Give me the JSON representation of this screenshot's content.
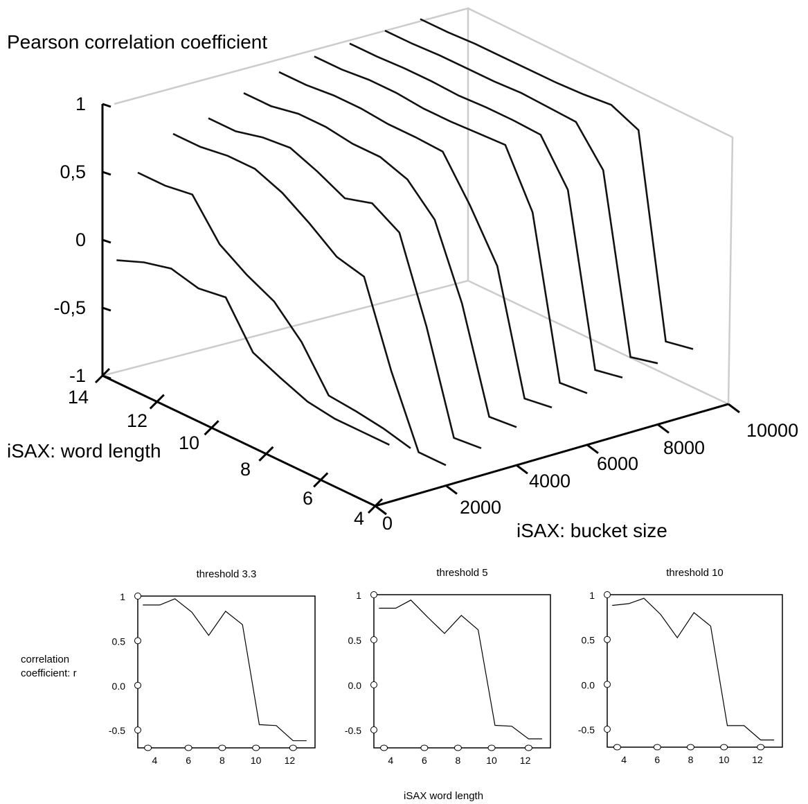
{
  "chart_data": [
    {
      "type": "line",
      "subtype": "3d-ribbon",
      "zlabel": "Pearson correlation coefficient",
      "xlabel": "iSAX: word length",
      "ylabel": "iSAX: bucket size",
      "x_ticks": [
        "14",
        "12",
        "10",
        "8",
        "6",
        "4"
      ],
      "y_ticks": [
        "0",
        "2000",
        "4000",
        "6000",
        "8000",
        "10000"
      ],
      "z_ticks": [
        "1",
        "0,5",
        "0",
        "-0,5",
        "-1"
      ],
      "xlim": [
        4,
        14
      ],
      "ylim": [
        0,
        10000
      ],
      "zlim": [
        -1,
        1
      ],
      "grid": false,
      "word_lengths": [
        4,
        5,
        6,
        7,
        8,
        9,
        10,
        11,
        12,
        13,
        14
      ],
      "series": [
        {
          "bucket_size": 400,
          "values": [
            -0.58,
            -0.58,
            -0.58,
            -0.55,
            -0.47,
            -0.38,
            -0.07,
            -0.1,
            -0.05,
            -0.1,
            -0.18
          ]
        },
        {
          "bucket_size": 1000,
          "values": [
            -0.65,
            -0.6,
            -0.57,
            -0.55,
            -0.25,
            -0.05,
            0.05,
            0.18,
            0.45,
            0.42,
            0.42
          ]
        },
        {
          "bucket_size": 2000,
          "values": [
            -0.85,
            -0.85,
            -0.35,
            0.25,
            0.3,
            0.45,
            0.58,
            0.66,
            0.66,
            0.63,
            0.63
          ]
        },
        {
          "bucket_size": 3000,
          "values": [
            -0.8,
            -0.82,
            -0.1,
            0.5,
            0.62,
            0.56,
            0.66,
            0.74,
            0.72,
            0.67,
            0.67
          ]
        },
        {
          "bucket_size": 4000,
          "values": [
            -0.72,
            -0.74,
            0.0,
            0.52,
            0.72,
            0.79,
            0.79,
            0.82,
            0.82,
            0.78,
            0.78
          ]
        },
        {
          "bucket_size": 5000,
          "values": [
            -0.65,
            -0.68,
            0.2,
            0.55,
            0.85,
            0.86,
            0.86,
            0.88,
            0.88,
            0.86,
            0.86
          ]
        },
        {
          "bucket_size": 6000,
          "values": [
            -0.62,
            -0.64,
            0.52,
            0.92,
            0.91,
            0.9,
            0.9,
            0.92,
            0.92,
            0.9,
            0.9
          ]
        },
        {
          "bucket_size": 7000,
          "values": [
            -0.58,
            -0.62,
            0.61,
            0.92,
            0.93,
            0.93,
            0.92,
            0.93,
            0.93,
            0.92,
            0.92
          ]
        },
        {
          "bucket_size": 8000,
          "values": [
            -0.55,
            -0.6,
            0.68,
            0.94,
            0.95,
            0.96,
            0.95,
            0.95,
            0.95,
            0.94,
            0.94
          ]
        },
        {
          "bucket_size": 9000,
          "values": [
            -0.52,
            -0.56,
            0.9,
            0.99,
            0.97,
            0.96,
            0.96,
            0.96,
            0.96,
            0.95,
            0.95
          ]
        }
      ]
    },
    {
      "type": "line",
      "title": "threshold 3.3",
      "ylabel": "correlation coefficient: r",
      "x": [
        3.3,
        4.3,
        5.2,
        6.2,
        7.2,
        8.2,
        9.2,
        10.2,
        11.2,
        12.2,
        13.0
      ],
      "values": [
        0.9,
        0.9,
        0.97,
        0.82,
        0.56,
        0.83,
        0.68,
        -0.44,
        -0.45,
        -0.62,
        -0.62
      ],
      "x_ticks": [
        "4",
        "6",
        "8",
        "10",
        "12"
      ],
      "y_ticks": [
        "1",
        "0.5",
        "0.0",
        "-0.5"
      ],
      "xlim": [
        3,
        13.5
      ],
      "ylim": [
        -0.7,
        1
      ]
    },
    {
      "type": "line",
      "title": "threshold 5",
      "x": [
        3.3,
        4.3,
        5.2,
        6.2,
        7.2,
        8.2,
        9.2,
        10.2,
        11.2,
        12.2,
        13.0
      ],
      "values": [
        0.85,
        0.85,
        0.94,
        0.75,
        0.57,
        0.77,
        0.61,
        -0.45,
        -0.46,
        -0.6,
        -0.6
      ],
      "x_ticks": [
        "4",
        "6",
        "8",
        "10",
        "12"
      ],
      "y_ticks": [
        "1",
        "0.5",
        "0.0",
        "-0.5"
      ],
      "xlim": [
        3,
        13.5
      ],
      "ylim": [
        -0.7,
        1
      ]
    },
    {
      "type": "line",
      "title": "threshold 10",
      "x": [
        3.3,
        4.3,
        5.2,
        6.2,
        7.2,
        8.2,
        9.2,
        10.2,
        11.2,
        12.2,
        13.0
      ],
      "values": [
        0.88,
        0.9,
        0.96,
        0.78,
        0.52,
        0.8,
        0.65,
        -0.46,
        -0.46,
        -0.62,
        -0.62
      ],
      "x_ticks": [
        "4",
        "6",
        "8",
        "10",
        "12"
      ],
      "y_ticks": [
        "1",
        "0.5",
        "0.0",
        "-0.5"
      ],
      "xlim": [
        3,
        13.5
      ],
      "ylim": [
        -0.7,
        1
      ]
    }
  ],
  "shared_xlabel": "iSAX word length"
}
